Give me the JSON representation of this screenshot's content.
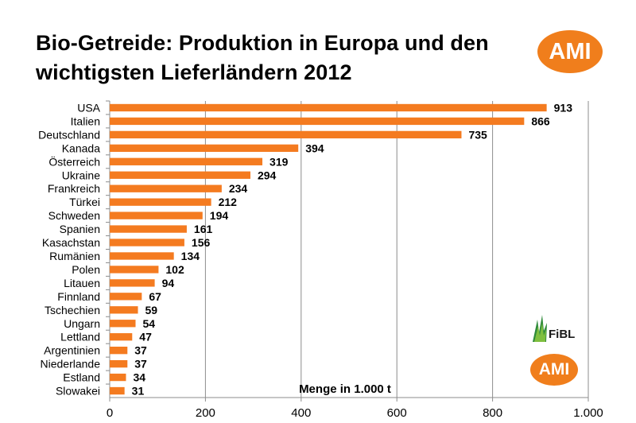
{
  "title": "Bio-Getreide: Produktion in Europa und den wichtigsten Lieferländern 2012",
  "logos": {
    "ami_text": "AMI",
    "fibl_text": "FiBL",
    "ami_color": "#F07E1C",
    "fibl_color": "#2E8B3A"
  },
  "chart_data": {
    "type": "bar",
    "orientation": "horizontal",
    "categories": [
      "USA",
      "Italien",
      "Deutschland",
      "Kanada",
      "Österreich",
      "Ukraine",
      "Frankreich",
      "Türkei",
      "Schweden",
      "Spanien",
      "Kasachstan",
      "Rumänien",
      "Polen",
      "Litauen",
      "Finnland",
      "Tschechien",
      "Ungarn",
      "Lettland",
      "Argentinien",
      "Niederlande",
      "Estland",
      "Slowakei"
    ],
    "values": [
      913,
      866,
      735,
      394,
      319,
      294,
      234,
      212,
      194,
      161,
      156,
      134,
      102,
      94,
      67,
      59,
      54,
      47,
      37,
      37,
      34,
      31
    ],
    "data_labels": [
      "913",
      "866",
      "735",
      "394",
      "319",
      "294",
      "234",
      "212",
      "194",
      "161",
      "156",
      "134",
      "102",
      "94",
      "67",
      "59",
      "54",
      "47",
      "37",
      "37",
      "34",
      "31"
    ],
    "xlabel": "Menge in 1.000 t",
    "xlim": [
      0,
      1000
    ],
    "xticks": [
      0,
      200,
      400,
      600,
      800,
      1000
    ],
    "xtick_labels": [
      "0",
      "200",
      "400",
      "600",
      "800",
      "1.000"
    ],
    "grid": "vertical",
    "bar_color": "#F47B20",
    "legend": "none"
  }
}
